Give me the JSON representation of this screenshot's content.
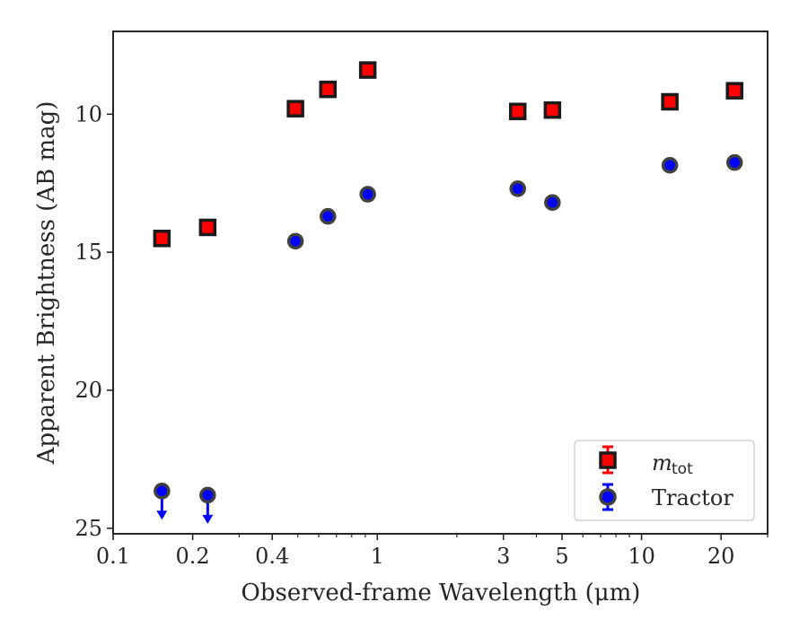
{
  "chart_data": {
    "type": "scatter",
    "xlabel": "Observed-frame Wavelength (μm)",
    "ylabel": "Apparent Brightness (AB mag)",
    "xscale": "log",
    "xlim": [
      0.1,
      30
    ],
    "ylim": [
      25.2,
      7.0
    ],
    "y_inverted": true,
    "x_ticks": [
      0.1,
      0.2,
      0.4,
      1,
      3,
      5,
      10,
      20
    ],
    "x_tick_labels": [
      "0.1",
      "0.2",
      "0.4",
      "1",
      "3",
      "5",
      "10",
      "20"
    ],
    "y_ticks": [
      10,
      15,
      20,
      25
    ],
    "y_tick_labels": [
      "10",
      "15",
      "20",
      "25"
    ],
    "grid": false,
    "legend_position": "bottom-right",
    "series": [
      {
        "name_main": "m",
        "name_sub": "tot",
        "marker": "square",
        "color": "#ff0000",
        "edge_color": "#1a1a1a",
        "x": [
          0.153,
          0.228,
          0.49,
          0.65,
          0.92,
          3.4,
          4.6,
          12.8,
          22.5
        ],
        "y": [
          14.5,
          14.1,
          9.8,
          9.1,
          8.4,
          9.9,
          9.85,
          9.55,
          9.15
        ],
        "upper_limits": [
          false,
          false,
          false,
          false,
          false,
          false,
          false,
          false,
          false
        ]
      },
      {
        "name": "Tractor",
        "marker": "circle",
        "color": "#0000ff",
        "edge_color": "#404040",
        "x": [
          0.153,
          0.228,
          0.49,
          0.65,
          0.92,
          3.4,
          4.6,
          12.8,
          22.5
        ],
        "y": [
          23.65,
          23.8,
          14.6,
          13.7,
          12.9,
          12.7,
          13.2,
          11.85,
          11.75
        ],
        "upper_limits": [
          true,
          true,
          false,
          false,
          false,
          false,
          false,
          false,
          false
        ]
      }
    ]
  }
}
